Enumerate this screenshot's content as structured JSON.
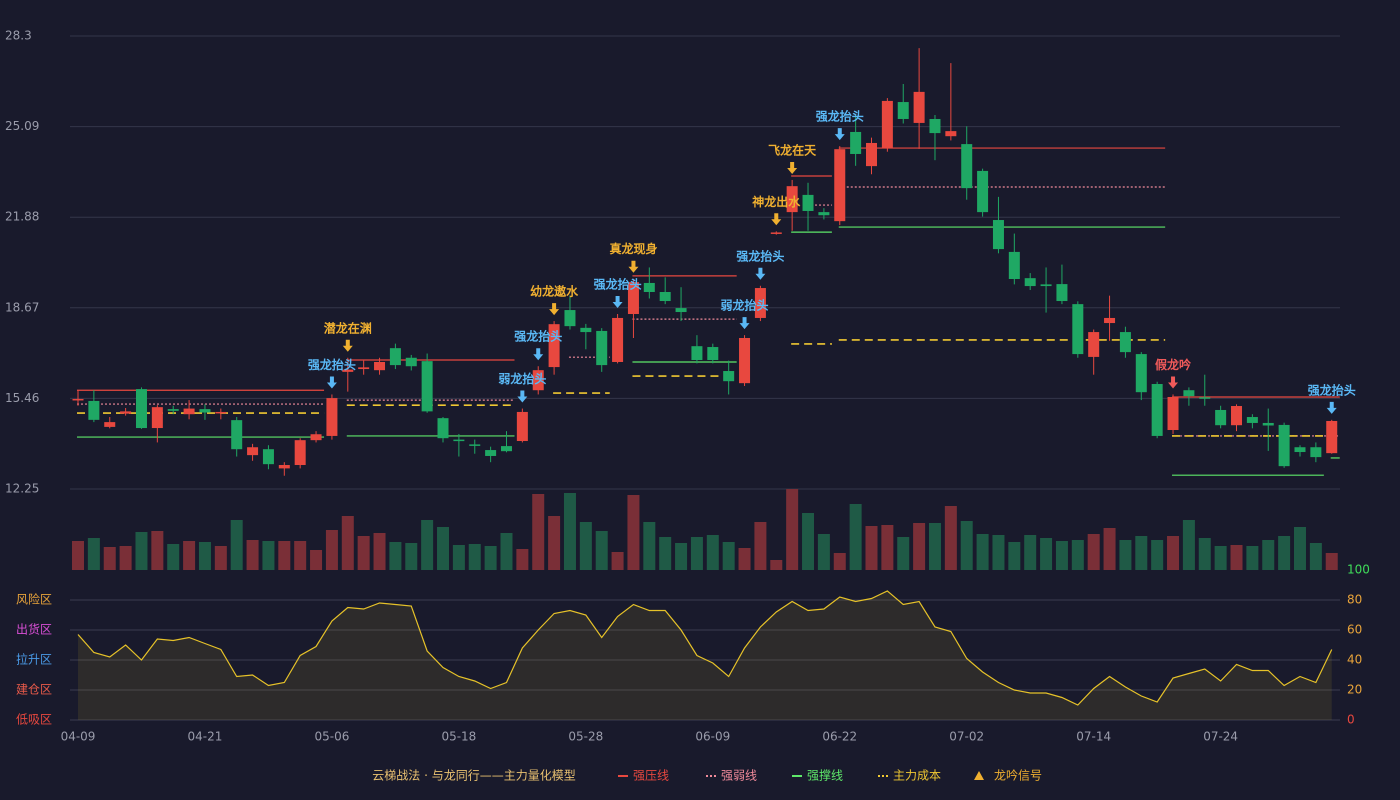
{
  "chart_data": {
    "type": "candlestick",
    "categories": [
      "04-09",
      null,
      null,
      null,
      null,
      null,
      null,
      null,
      "04-21",
      null,
      null,
      null,
      null,
      null,
      null,
      null,
      "05-06",
      null,
      null,
      null,
      null,
      null,
      null,
      null,
      "05-18",
      null,
      null,
      null,
      null,
      null,
      null,
      null,
      "05-28",
      null,
      null,
      null,
      null,
      null,
      null,
      null,
      "06-09",
      null,
      null,
      null,
      null,
      null,
      null,
      null,
      "06-22",
      null,
      null,
      null,
      null,
      null,
      null,
      null,
      "07-02",
      null,
      null,
      null,
      null,
      null,
      null,
      null,
      "07-14",
      null,
      null,
      null,
      null,
      null,
      null,
      null,
      "07-24",
      null,
      null,
      null,
      null,
      null,
      null,
      null
    ],
    "open": [
      15.4,
      15.37,
      14.45,
      14.92,
      15.79,
      14.41,
      15.08,
      14.9,
      15.08,
      14.94,
      14.69,
      13.45,
      13.66,
      12.98,
      13.1,
      13.98,
      14.13,
      16.4,
      16.5,
      16.46,
      17.24,
      16.9,
      16.78,
      14.76,
      14.0,
      13.83,
      13.63,
      13.77,
      13.95,
      15.75,
      16.57,
      18.59,
      17.96,
      17.85,
      16.75,
      18.45,
      19.55,
      19.23,
      18.66,
      17.31,
      17.28,
      16.43,
      16.0,
      18.31,
      21.3,
      22.06,
      22.67,
      22.06,
      21.74,
      24.9,
      23.69,
      24.33,
      25.96,
      25.22,
      25.36,
      24.75,
      24.47,
      23.52,
      21.78,
      20.65,
      19.72,
      19.5,
      19.51,
      18.8,
      16.93,
      18.13,
      17.81,
      17.03,
      15.97,
      14.34,
      15.75,
      15.5,
      15.05,
      14.51,
      14.8,
      14.59,
      14.52,
      13.73,
      13.73,
      13.52
    ],
    "high": [
      15.75,
      15.75,
      14.8,
      15.12,
      15.85,
      15.22,
      15.2,
      15.4,
      15.25,
      15.1,
      14.8,
      13.85,
      13.8,
      13.2,
      14.05,
      14.3,
      15.6,
      16.9,
      16.8,
      16.9,
      17.4,
      17.0,
      17.05,
      14.8,
      14.2,
      14.0,
      13.75,
      14.3,
      15.1,
      16.6,
      18.2,
      19.1,
      18.1,
      17.95,
      18.45,
      19.7,
      20.1,
      19.75,
      19.4,
      17.7,
      17.4,
      16.8,
      17.7,
      19.45,
      21.38,
      23.2,
      23.1,
      22.2,
      24.4,
      25.5,
      24.7,
      26.1,
      26.6,
      27.87,
      25.5,
      27.34,
      25.1,
      23.6,
      22.6,
      21.3,
      19.9,
      20.1,
      20.2,
      18.9,
      17.9,
      19.1,
      18.0,
      17.1,
      16.05,
      15.6,
      15.85,
      16.3,
      15.2,
      15.25,
      14.9,
      15.1,
      14.6,
      13.8,
      13.9,
      14.7
    ],
    "low": [
      15.2,
      14.62,
      14.4,
      14.85,
      14.38,
      13.9,
      14.9,
      14.72,
      14.7,
      14.72,
      13.4,
      13.25,
      12.95,
      12.72,
      12.98,
      13.9,
      14.0,
      15.7,
      16.3,
      16.3,
      16.5,
      16.45,
      14.95,
      13.9,
      13.4,
      13.5,
      13.2,
      13.55,
      13.9,
      15.6,
      16.3,
      17.9,
      17.2,
      16.4,
      16.7,
      17.6,
      19.0,
      18.8,
      18.2,
      16.7,
      16.7,
      15.6,
      15.9,
      18.2,
      21.26,
      21.4,
      21.4,
      21.8,
      21.6,
      23.7,
      23.4,
      24.2,
      25.2,
      24.3,
      23.9,
      24.6,
      22.5,
      21.9,
      20.6,
      19.5,
      19.3,
      18.5,
      18.8,
      16.9,
      16.3,
      17.5,
      16.9,
      15.4,
      14.05,
      14.2,
      15.2,
      15.2,
      14.4,
      14.3,
      14.4,
      13.6,
      13.0,
      13.4,
      13.2,
      13.5
    ],
    "close": [
      15.44,
      14.7,
      14.62,
      15.0,
      14.41,
      15.15,
      15.02,
      15.1,
      14.96,
      14.98,
      13.66,
      13.73,
      13.13,
      13.1,
      13.98,
      14.19,
      15.47,
      16.48,
      16.56,
      16.75,
      16.64,
      16.6,
      15.0,
      14.05,
      13.96,
      13.79,
      13.42,
      13.59,
      14.98,
      16.46,
      18.09,
      18.02,
      17.81,
      16.64,
      18.31,
      19.58,
      19.23,
      18.91,
      18.52,
      16.82,
      16.82,
      16.07,
      17.6,
      19.37,
      21.34,
      22.98,
      22.1,
      21.95,
      24.29,
      24.12,
      24.51,
      26.0,
      25.36,
      26.32,
      24.86,
      24.93,
      22.91,
      22.06,
      20.75,
      19.69,
      19.44,
      19.44,
      18.91,
      17.03,
      17.81,
      18.31,
      17.1,
      15.68,
      14.13,
      15.51,
      15.54,
      15.46,
      14.51,
      15.19,
      14.59,
      14.5,
      13.06,
      13.56,
      13.38,
      14.66
    ],
    "volume": [
      29,
      32,
      23,
      24,
      38,
      39,
      26,
      29,
      28,
      24,
      50,
      30,
      29,
      29,
      29,
      20,
      40,
      54,
      34,
      37,
      28,
      27,
      50,
      43,
      25,
      26,
      24,
      37,
      21,
      76,
      54,
      77,
      48,
      39,
      18,
      75,
      48,
      33,
      27,
      33,
      35,
      28,
      22,
      48,
      10,
      81,
      57,
      36,
      17,
      66,
      44,
      45,
      33,
      47,
      47,
      64,
      49,
      36,
      35,
      28,
      35,
      32,
      29,
      30,
      36,
      42,
      30,
      34,
      30,
      34,
      50,
      32,
      24,
      25,
      24,
      30,
      34,
      43,
      27,
      17
    ],
    "up_color": "#e8483f",
    "down_color": "#1fa864",
    "volume_up_color": "#7a2f37",
    "volume_down_color": "#1f5a46",
    "ylim": [
      12.25,
      28.3
    ],
    "yticks": [
      12.25,
      15.46,
      18.67,
      21.88,
      25.09,
      28.3
    ],
    "grid": true,
    "levels": [
      {
        "name": "强压线",
        "color": "#e8483f",
        "style": "solid",
        "segments": [
          {
            "from": 0,
            "to": 15,
            "value": 15.75
          },
          {
            "from": 17,
            "to": 27,
            "value": 16.82
          },
          {
            "from": 35,
            "to": 41,
            "value": 19.8
          },
          {
            "from": 45,
            "to": 47,
            "value": 23.34
          },
          {
            "from": 48,
            "to": 68,
            "value": 24.33
          },
          {
            "from": 69,
            "to": 79,
            "value": 15.51
          }
        ]
      },
      {
        "name": "强弱线",
        "color": "#f08a9a",
        "style": "dotted",
        "segments": [
          {
            "from": 0,
            "to": 15,
            "value": 15.26
          },
          {
            "from": 17,
            "to": 27,
            "value": 15.4
          },
          {
            "from": 31,
            "to": 33,
            "value": 16.92
          },
          {
            "from": 35,
            "to": 41,
            "value": 18.27
          },
          {
            "from": 46,
            "to": 47,
            "value": 22.31
          },
          {
            "from": 48,
            "to": 68,
            "value": 22.95
          },
          {
            "from": 69,
            "to": 79,
            "value": 14.13
          }
        ]
      },
      {
        "name": "强撑线",
        "color": "#5ee86a",
        "style": "solid",
        "segments": [
          {
            "from": 0,
            "to": 15,
            "value": 14.09
          },
          {
            "from": 17,
            "to": 27,
            "value": 14.13
          },
          {
            "from": 35,
            "to": 41,
            "value": 16.75
          },
          {
            "from": 45,
            "to": 47,
            "value": 21.35
          },
          {
            "from": 48,
            "to": 68,
            "value": 21.53
          },
          {
            "from": 69,
            "to": 78,
            "value": 12.74
          },
          {
            "from": 79,
            "to": 79,
            "value": 13.35
          }
        ]
      },
      {
        "name": "主力成本",
        "color": "#f0c832",
        "style": "dashed",
        "segments": [
          {
            "from": 0,
            "to": 15,
            "value": 14.94
          },
          {
            "from": 17,
            "to": 27,
            "value": 15.22
          },
          {
            "from": 30,
            "to": 33,
            "value": 15.65
          },
          {
            "from": 35,
            "to": 40,
            "value": 16.25
          },
          {
            "from": 45,
            "to": 47,
            "value": 17.39
          },
          {
            "from": 48,
            "to": 68,
            "value": 17.53
          },
          {
            "from": 69,
            "to": 79,
            "value": 14.13
          }
        ]
      }
    ],
    "signals": [
      {
        "index": 16,
        "label": "强龙抬头",
        "color": "#5ab8f5"
      },
      {
        "index": 17,
        "label": "潜龙在渊",
        "color": "#f0b030"
      },
      {
        "index": 28,
        "label": "弱龙抬头",
        "color": "#5ab8f5"
      },
      {
        "index": 29,
        "label": "强龙抬头",
        "color": "#5ab8f5"
      },
      {
        "index": 30,
        "label": "幼龙遨水",
        "color": "#f0b030"
      },
      {
        "index": 34,
        "label": "强龙抬头",
        "color": "#5ab8f5"
      },
      {
        "index": 35,
        "label": "真龙现身",
        "color": "#f0b030"
      },
      {
        "index": 42,
        "label": "弱龙抬头",
        "color": "#5ab8f5"
      },
      {
        "index": 43,
        "label": "强龙抬头",
        "color": "#5ab8f5"
      },
      {
        "index": 44,
        "label": "神龙出水",
        "color": "#f0b030"
      },
      {
        "index": 45,
        "label": "飞龙在天",
        "color": "#f0b030"
      },
      {
        "index": 48,
        "label": "强龙抬头",
        "color": "#5ab8f5"
      },
      {
        "index": 69,
        "label": "假龙吟",
        "color": "#f05a5a"
      },
      {
        "index": 79,
        "label": "强龙抬头",
        "color": "#5ab8f5"
      }
    ],
    "oscillator": {
      "values": [
        57,
        45,
        42,
        50,
        40,
        54,
        53,
        55,
        51,
        47,
        29,
        30,
        23,
        25,
        43,
        49,
        66,
        75,
        74,
        78,
        77,
        76,
        46,
        35,
        29,
        26,
        21,
        25,
        48,
        60,
        71,
        73,
        70,
        55,
        69,
        77,
        73,
        73,
        60,
        43,
        38,
        29,
        48,
        62,
        72,
        79,
        73,
        74,
        82,
        79,
        81,
        86,
        77,
        79,
        62,
        59,
        41,
        32,
        25,
        20,
        18,
        18,
        15,
        10,
        21,
        29,
        22,
        16,
        12,
        28,
        31,
        34,
        26,
        37,
        33,
        33,
        23,
        29,
        25,
        47
      ],
      "color": "#e6c229",
      "ylim": [
        0,
        100
      ],
      "yticks": [
        0,
        20,
        40,
        60,
        80,
        100
      ],
      "zones": [
        {
          "value": 0,
          "label": "低吸区",
          "color": "#e8483f"
        },
        {
          "value": 20,
          "label": "建仓区",
          "color": "#e85a4a"
        },
        {
          "value": 40,
          "label": "拉升区",
          "color": "#4a9be8"
        },
        {
          "value": 60,
          "label": "出货区",
          "color": "#d94fd6"
        },
        {
          "value": 80,
          "label": "风险区",
          "color": "#e8a33a"
        }
      ]
    },
    "legend_title": "云梯战法 · 与龙同行——主力量化模型",
    "signal_legend": "龙吟信号"
  }
}
